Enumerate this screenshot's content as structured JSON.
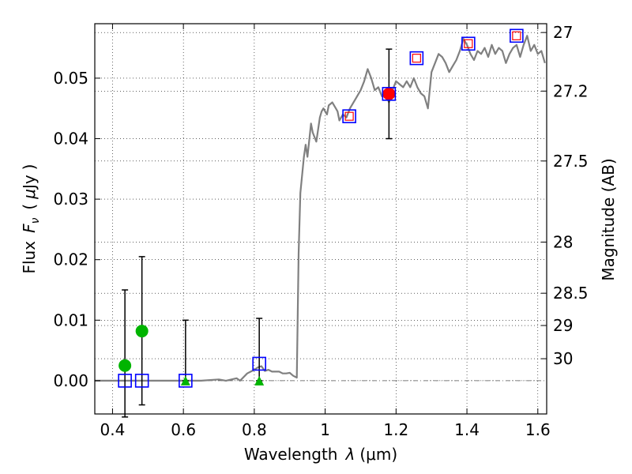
{
  "chart_data": {
    "type": "scatter",
    "xlabel": "Wavelength  λ (μm)",
    "ylabel": "Flux  F_ν  ( μJy )",
    "ylabel_parts": {
      "flux": "Flux",
      "symbol": "F",
      "sub": "ν",
      "open": "(",
      "mu": "μ",
      "unit": "Jy",
      "close": ")"
    },
    "xlabel_parts": {
      "word": "Wavelength",
      "lambda": "λ",
      "unit": "(μm)"
    },
    "y2label": "Magnitude (AB)",
    "xlim": [
      0.35,
      1.625
    ],
    "ylim": [
      -0.0055,
      0.059
    ],
    "grid": true,
    "x_ticks": [
      {
        "value": 0.4,
        "label": "0.4"
      },
      {
        "value": 0.6,
        "label": "0.6"
      },
      {
        "value": 0.8,
        "label": "0.8"
      },
      {
        "value": 1.0,
        "label": "1"
      },
      {
        "value": 1.2,
        "label": "1.2"
      },
      {
        "value": 1.4,
        "label": "1.4"
      },
      {
        "value": 1.6,
        "label": "1.6"
      }
    ],
    "y_ticks": [
      {
        "value": 0.0,
        "label": "0.00"
      },
      {
        "value": 0.01,
        "label": "0.01"
      },
      {
        "value": 0.02,
        "label": "0.02"
      },
      {
        "value": 0.03,
        "label": "0.03"
      },
      {
        "value": 0.04,
        "label": "0.04"
      },
      {
        "value": 0.05,
        "label": "0.05"
      }
    ],
    "y2_ticks": [
      {
        "mag": 27.0,
        "label": "27"
      },
      {
        "mag": 27.2,
        "label": "27.2"
      },
      {
        "mag": 27.5,
        "label": "27.5"
      },
      {
        "mag": 28.0,
        "label": "28"
      },
      {
        "mag": 28.5,
        "label": "28.5"
      },
      {
        "mag": 29.0,
        "label": "29"
      },
      {
        "mag": 30.0,
        "label": "30"
      }
    ],
    "model_spectrum": {
      "name": "model SED",
      "color": "#808080",
      "x": [
        0.35,
        0.4,
        0.45,
        0.5,
        0.55,
        0.6,
        0.65,
        0.7,
        0.72,
        0.75,
        0.76,
        0.78,
        0.79,
        0.8,
        0.81,
        0.82,
        0.83,
        0.84,
        0.85,
        0.87,
        0.88,
        0.89,
        0.9,
        0.91,
        0.92,
        0.925,
        0.93,
        0.94,
        0.945,
        0.95,
        0.96,
        0.965,
        0.975,
        0.985,
        0.99,
        0.995,
        1.0,
        1.005,
        1.01,
        1.02,
        1.03,
        1.035,
        1.04,
        1.05,
        1.06,
        1.07,
        1.08,
        1.09,
        1.1,
        1.11,
        1.12,
        1.13,
        1.14,
        1.15,
        1.16,
        1.17,
        1.18,
        1.19,
        1.2,
        1.21,
        1.22,
        1.23,
        1.24,
        1.25,
        1.26,
        1.27,
        1.28,
        1.29,
        1.3,
        1.31,
        1.32,
        1.33,
        1.34,
        1.35,
        1.36,
        1.37,
        1.38,
        1.39,
        1.4,
        1.41,
        1.42,
        1.43,
        1.44,
        1.45,
        1.46,
        1.47,
        1.48,
        1.49,
        1.5,
        1.51,
        1.52,
        1.53,
        1.54,
        1.55,
        1.56,
        1.57,
        1.58,
        1.59,
        1.6,
        1.61,
        1.62
      ],
      "y": [
        0.0,
        0.0,
        0.0,
        0.0,
        0.0,
        0.0,
        0.0,
        0.0002,
        0.0,
        0.0004,
        0.0,
        0.0012,
        0.0015,
        0.0018,
        0.0022,
        0.0024,
        0.0016,
        0.0018,
        0.0015,
        0.0015,
        0.0012,
        0.0012,
        0.0013,
        0.0008,
        0.0005,
        0.021,
        0.031,
        0.037,
        0.039,
        0.037,
        0.0425,
        0.041,
        0.0395,
        0.0435,
        0.0445,
        0.045,
        0.0445,
        0.044,
        0.0455,
        0.046,
        0.045,
        0.0445,
        0.043,
        0.044,
        0.0435,
        0.045,
        0.046,
        0.047,
        0.048,
        0.0495,
        0.0515,
        0.05,
        0.048,
        0.0485,
        0.047,
        0.0475,
        0.046,
        0.048,
        0.0495,
        0.049,
        0.0485,
        0.0495,
        0.0485,
        0.05,
        0.0485,
        0.0475,
        0.047,
        0.045,
        0.051,
        0.0525,
        0.054,
        0.0535,
        0.0525,
        0.051,
        0.052,
        0.053,
        0.0545,
        0.0565,
        0.0555,
        0.054,
        0.053,
        0.0545,
        0.054,
        0.055,
        0.0535,
        0.0555,
        0.054,
        0.055,
        0.0545,
        0.0525,
        0.054,
        0.055,
        0.0555,
        0.0535,
        0.0555,
        0.057,
        0.0545,
        0.0555,
        0.054,
        0.0545,
        0.0525
      ]
    },
    "series": [
      {
        "name": "detections",
        "marker": "filled-circle-green",
        "color": "#00b400",
        "points": [
          {
            "x": 0.435,
            "y": 0.0025
          },
          {
            "x": 0.483,
            "y": 0.0082
          }
        ]
      },
      {
        "name": "upper limits",
        "marker": "filled-triangle-green",
        "color": "#00b400",
        "points": [
          {
            "x": 0.606,
            "y": 0.0
          },
          {
            "x": 0.814,
            "y": 0.0
          }
        ]
      },
      {
        "name": "red detection",
        "marker": "filled-circle-red",
        "color": "#ff0000",
        "points": [
          {
            "x": 1.18,
            "y": 0.0474
          }
        ]
      },
      {
        "name": "model photometry",
        "marker": "open-square-blue",
        "color": "#0000ff",
        "points": [
          {
            "x": 0.435,
            "y": 0.0
          },
          {
            "x": 0.483,
            "y": 0.0
          },
          {
            "x": 0.606,
            "y": 0.0
          },
          {
            "x": 0.814,
            "y": 0.0028
          },
          {
            "x": 1.068,
            "y": 0.0437
          },
          {
            "x": 1.18,
            "y": 0.0474
          },
          {
            "x": 1.258,
            "y": 0.0533
          },
          {
            "x": 1.404,
            "y": 0.0557
          },
          {
            "x": 1.54,
            "y": 0.057
          }
        ]
      },
      {
        "name": "model photometry small",
        "marker": "open-square-red",
        "color": "#ff0000",
        "points": [
          {
            "x": 1.068,
            "y": 0.0437
          },
          {
            "x": 1.258,
            "y": 0.0533
          },
          {
            "x": 1.404,
            "y": 0.0557
          },
          {
            "x": 1.54,
            "y": 0.057
          }
        ]
      }
    ],
    "error_bars": [
      {
        "x": 0.435,
        "low": -0.006,
        "high": 0.015
      },
      {
        "x": 0.483,
        "low": -0.004,
        "high": 0.0205
      },
      {
        "x": 0.606,
        "low": 0.0,
        "high": 0.01
      },
      {
        "x": 0.814,
        "low": 0.0,
        "high": 0.0103
      },
      {
        "x": 1.18,
        "low": 0.04,
        "high": 0.0548
      }
    ]
  }
}
